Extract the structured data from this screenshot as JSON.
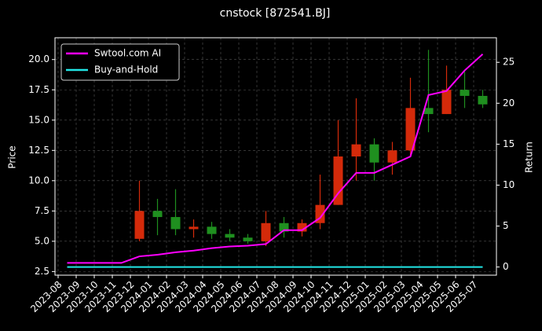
{
  "chart_data": {
    "type": "candlestick",
    "title": "cnstock [872541.BJ]",
    "y_label": "Price",
    "y2_label": "Return",
    "x": [
      "2023-08",
      "2023-09",
      "2023-10",
      "2023-11",
      "2023-12",
      "2024-01",
      "2024-02",
      "2024-03",
      "2024-04",
      "2024-05",
      "2024-06",
      "2024-07",
      "2024-08",
      "2024-09",
      "2024-10",
      "2024-11",
      "2024-12",
      "2025-01",
      "2025-02",
      "2025-03",
      "2025-04",
      "2025-05",
      "2025-06",
      "2025-07"
    ],
    "open": [
      null,
      null,
      null,
      null,
      5.2,
      7.5,
      7.0,
      6.0,
      6.2,
      5.6,
      5.3,
      5.0,
      6.5,
      5.8,
      6.5,
      8.0,
      12.0,
      13.0,
      11.5,
      12.5,
      16.0,
      15.5,
      17.5,
      17.0
    ],
    "high": [
      null,
      null,
      null,
      null,
      10.0,
      8.5,
      9.3,
      6.8,
      6.6,
      6.0,
      5.6,
      7.5,
      7.0,
      6.8,
      10.5,
      15.0,
      16.8,
      13.5,
      13.2,
      18.5,
      20.8,
      19.5,
      19.0,
      17.5
    ],
    "low": [
      null,
      null,
      null,
      null,
      5.0,
      5.5,
      5.5,
      5.3,
      5.2,
      5.0,
      4.8,
      4.6,
      5.3,
      5.4,
      6.0,
      8.0,
      10.0,
      10.0,
      10.5,
      12.0,
      14.0,
      15.5,
      16.0,
      16.0
    ],
    "close": [
      null,
      null,
      null,
      null,
      7.5,
      7.0,
      6.0,
      6.2,
      5.6,
      5.3,
      5.0,
      6.5,
      5.8,
      6.5,
      8.0,
      12.0,
      13.0,
      11.5,
      12.5,
      16.0,
      15.5,
      17.5,
      17.0,
      16.3
    ],
    "up_color": "#d42a0a",
    "down_color": "#1f8f1f",
    "series": [
      {
        "name": "Swtool.com AI",
        "color": "#ff00ff",
        "axis": "y2",
        "values": [
          0.5,
          0.5,
          0.5,
          0.5,
          1.3,
          1.5,
          1.8,
          2.0,
          2.3,
          2.5,
          2.6,
          2.8,
          4.5,
          4.5,
          6.0,
          9.0,
          11.5,
          11.5,
          12.5,
          13.5,
          21.0,
          21.5,
          24.0,
          26.0
        ]
      },
      {
        "name": "Buy-and-Hold",
        "color": "#22e5e5",
        "axis": "y2",
        "values": [
          0,
          0,
          0,
          0,
          0,
          0,
          0,
          0,
          0,
          0,
          0,
          0,
          0,
          0,
          0,
          0,
          0,
          0,
          0,
          0,
          0,
          0,
          0,
          0
        ]
      }
    ],
    "ylim": [
      2.2,
      21.8
    ],
    "yticks": [
      {
        "value": 2.5,
        "label": "2.5"
      },
      {
        "value": 5,
        "label": "5.0"
      },
      {
        "value": 7.5,
        "label": "7.5"
      },
      {
        "value": 10,
        "label": "10.0"
      },
      {
        "value": 12.5,
        "label": "12.5"
      },
      {
        "value": 15,
        "label": "15.0"
      },
      {
        "value": 17.5,
        "label": "17.5"
      },
      {
        "value": 20,
        "label": "20.0"
      }
    ],
    "y2lim": [
      -1,
      28
    ],
    "y2ticks": [
      0,
      5,
      10,
      15,
      20,
      25
    ],
    "grid": true,
    "legend": "upper left"
  }
}
